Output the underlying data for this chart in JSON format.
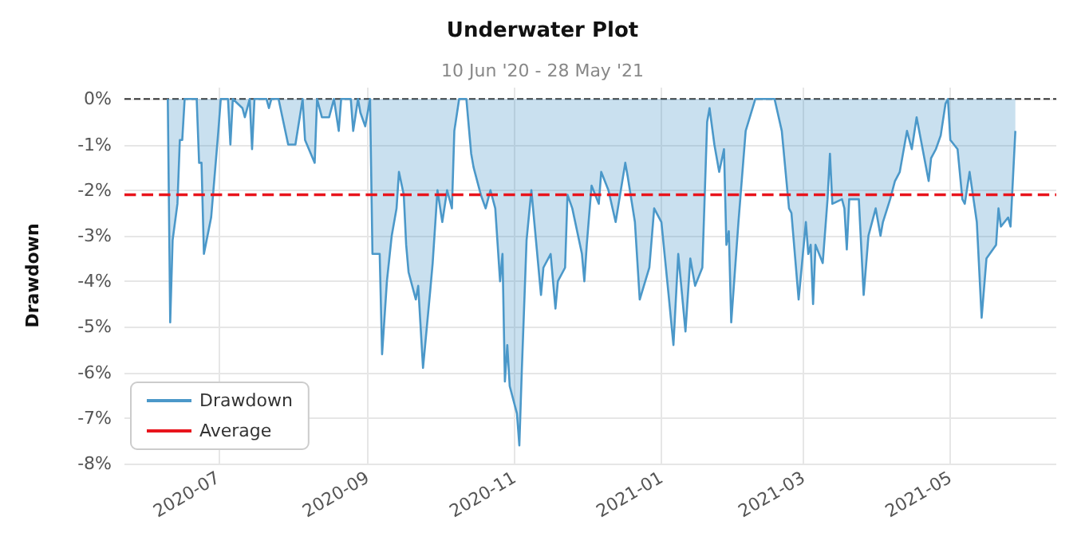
{
  "chart_data": {
    "type": "area",
    "title": "Underwater Plot",
    "subtitle": "10 Jun '20 - 28 May '21",
    "ylabel": "Drawdown",
    "x": [
      "2020-06-10",
      "2020-06-11",
      "2020-06-12",
      "2020-06-14",
      "2020-06-15",
      "2020-06-16",
      "2020-06-17",
      "2020-06-20",
      "2020-06-22",
      "2020-06-23",
      "2020-06-24",
      "2020-06-25",
      "2020-06-28",
      "2020-07-01",
      "2020-07-02",
      "2020-07-05",
      "2020-07-06",
      "2020-07-07",
      "2020-07-11",
      "2020-07-12",
      "2020-07-14",
      "2020-07-15",
      "2020-07-16",
      "2020-07-21",
      "2020-07-22",
      "2020-07-23",
      "2020-07-26",
      "2020-07-28",
      "2020-07-30",
      "2020-08-02",
      "2020-08-05",
      "2020-08-06",
      "2020-08-10",
      "2020-08-11",
      "2020-08-13",
      "2020-08-16",
      "2020-08-18",
      "2020-08-20",
      "2020-08-21",
      "2020-08-25",
      "2020-08-26",
      "2020-08-28",
      "2020-08-29",
      "2020-08-31",
      "2020-09-02",
      "2020-09-03",
      "2020-09-06",
      "2020-09-07",
      "2020-09-09",
      "2020-09-11",
      "2020-09-13",
      "2020-09-14",
      "2020-09-16",
      "2020-09-17",
      "2020-09-18",
      "2020-09-21",
      "2020-09-22",
      "2020-09-24",
      "2020-09-27",
      "2020-09-28",
      "2020-09-30",
      "2020-10-02",
      "2020-10-04",
      "2020-10-06",
      "2020-10-07",
      "2020-10-09",
      "2020-10-12",
      "2020-10-14",
      "2020-10-15",
      "2020-10-18",
      "2020-10-20",
      "2020-10-22",
      "2020-10-24",
      "2020-10-26",
      "2020-10-27",
      "2020-10-28",
      "2020-10-29",
      "2020-10-30",
      "2020-11-02",
      "2020-11-03",
      "2020-11-04",
      "2020-11-06",
      "2020-11-08",
      "2020-11-12",
      "2020-11-13",
      "2020-11-16",
      "2020-11-18",
      "2020-11-19",
      "2020-11-22",
      "2020-11-23",
      "2020-11-25",
      "2020-11-29",
      "2020-11-30",
      "2020-12-01",
      "2020-12-03",
      "2020-12-06",
      "2020-12-07",
      "2020-12-10",
      "2020-12-13",
      "2020-12-17",
      "2020-12-18",
      "2020-12-21",
      "2020-12-23",
      "2020-12-27",
      "2020-12-29",
      "2021-01-01",
      "2021-01-04",
      "2021-01-06",
      "2021-01-08",
      "2021-01-11",
      "2021-01-13",
      "2021-01-15",
      "2021-01-18",
      "2021-01-20",
      "2021-01-21",
      "2021-01-23",
      "2021-01-25",
      "2021-01-27",
      "2021-01-28",
      "2021-01-29",
      "2021-01-30",
      "2021-02-02",
      "2021-02-05",
      "2021-02-09",
      "2021-02-14",
      "2021-02-17",
      "2021-02-20",
      "2021-02-23",
      "2021-02-24",
      "2021-02-27",
      "2021-03-02",
      "2021-03-03",
      "2021-03-04",
      "2021-03-05",
      "2021-03-06",
      "2021-03-09",
      "2021-03-11",
      "2021-03-12",
      "2021-03-13",
      "2021-03-17",
      "2021-03-18",
      "2021-03-19",
      "2021-03-20",
      "2021-03-24",
      "2021-03-26",
      "2021-03-28",
      "2021-03-31",
      "2021-04-02",
      "2021-04-03",
      "2021-04-06",
      "2021-04-08",
      "2021-04-10",
      "2021-04-13",
      "2021-04-15",
      "2021-04-17",
      "2021-04-22",
      "2021-04-23",
      "2021-04-25",
      "2021-04-27",
      "2021-04-29",
      "2021-04-30",
      "2021-05-01",
      "2021-05-04",
      "2021-05-06",
      "2021-05-07",
      "2021-05-09",
      "2021-05-12",
      "2021-05-14",
      "2021-05-16",
      "2021-05-20",
      "2021-05-21",
      "2021-05-22",
      "2021-05-25",
      "2021-05-26",
      "2021-05-28"
    ],
    "series": [
      {
        "name": "Drawdown",
        "color": "#4b98c9",
        "values": [
          0,
          -4.9,
          -3.1,
          -2.3,
          -0.9,
          -0.9,
          0,
          0,
          0,
          -1.4,
          -1.4,
          -3.4,
          -2.6,
          -0.7,
          0,
          0,
          -1.0,
          0,
          -0.2,
          -0.4,
          0,
          -1.1,
          0,
          0,
          -0.2,
          0,
          0,
          -0.5,
          -1.0,
          -1.0,
          0,
          -0.9,
          -1.4,
          0,
          -0.4,
          -0.4,
          0,
          -0.7,
          0,
          0,
          -0.7,
          0,
          -0.3,
          -0.6,
          0,
          -3.4,
          -3.4,
          -5.6,
          -4.0,
          -3.0,
          -2.4,
          -1.6,
          -2.1,
          -3.2,
          -3.8,
          -4.4,
          -4.1,
          -5.9,
          -4.2,
          -3.6,
          -2.0,
          -2.7,
          -2.0,
          -2.4,
          -0.7,
          0,
          0,
          -1.2,
          -1.5,
          -2.1,
          -2.4,
          -2.0,
          -2.4,
          -4.0,
          -3.4,
          -6.2,
          -5.4,
          -6.3,
          -6.9,
          -7.6,
          -6.0,
          -3.1,
          -2.0,
          -4.3,
          -3.7,
          -3.4,
          -4.6,
          -4.0,
          -3.7,
          -2.1,
          -2.4,
          -3.4,
          -4.0,
          -3.2,
          -1.9,
          -2.3,
          -1.6,
          -2.0,
          -2.7,
          -1.4,
          -1.7,
          -2.7,
          -4.4,
          -3.7,
          -2.4,
          -2.7,
          -4.3,
          -5.4,
          -3.4,
          -5.1,
          -3.5,
          -4.1,
          -3.7,
          -0.5,
          -0.2,
          -1.0,
          -1.6,
          -1.1,
          -3.2,
          -2.9,
          -4.9,
          -2.7,
          -0.7,
          0,
          0,
          0,
          -0.7,
          -2.4,
          -2.5,
          -4.4,
          -2.7,
          -3.4,
          -3.2,
          -4.5,
          -3.2,
          -3.6,
          -2.2,
          -1.2,
          -2.3,
          -2.2,
          -2.4,
          -3.3,
          -2.2,
          -2.2,
          -4.3,
          -3.0,
          -2.4,
          -3.0,
          -2.7,
          -2.2,
          -1.8,
          -1.6,
          -0.7,
          -1.1,
          -0.4,
          -1.8,
          -1.3,
          -1.1,
          -0.8,
          -0.1,
          0,
          -0.9,
          -1.1,
          -2.2,
          -2.3,
          -1.6,
          -2.7,
          -4.8,
          -3.5,
          -3.2,
          -2.4,
          -2.8,
          -2.6,
          -2.8,
          -0.7
        ]
      }
    ],
    "ref_lines": [
      {
        "axis": "y",
        "value": 0,
        "color": "#333333",
        "line_style": "dashed"
      },
      {
        "axis": "y",
        "value": -2.1,
        "label": "Average",
        "color": "#e8141c",
        "line_style": "dashed"
      }
    ],
    "xlim": [
      "2020-05-23",
      "2021-06-14"
    ],
    "xticks": [
      {
        "value": "2020-07-01",
        "label": "2020-07"
      },
      {
        "value": "2020-09-01",
        "label": "2020-09"
      },
      {
        "value": "2020-11-01",
        "label": "2020-11"
      },
      {
        "value": "2021-01-01",
        "label": "2021-01"
      },
      {
        "value": "2021-03-01",
        "label": "2021-03"
      },
      {
        "value": "2021-05-01",
        "label": "2021-05"
      }
    ],
    "ylim": [
      -8,
      0.25
    ],
    "yticks": [
      {
        "value": 0,
        "label": "0%"
      },
      {
        "value": -1,
        "label": "-1%"
      },
      {
        "value": -2,
        "label": "-2%"
      },
      {
        "value": -3,
        "label": "-3%"
      },
      {
        "value": -4,
        "label": "-4%"
      },
      {
        "value": -5,
        "label": "-5%"
      },
      {
        "value": -6,
        "label": "-6%"
      },
      {
        "value": -7,
        "label": "-7%"
      },
      {
        "value": -8,
        "label": "-8%"
      }
    ],
    "grid": true,
    "legend": "bottom left",
    "line_style": "solid"
  }
}
